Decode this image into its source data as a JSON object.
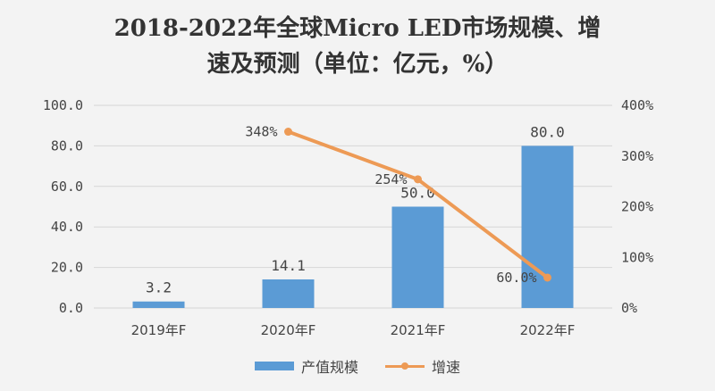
{
  "chart_data": {
    "type": "bar+line",
    "title_line1": "2018-2022年全球Micro LED市场规模、增",
    "title_line2": "速及预测（单位：亿元，%）",
    "categories": [
      "2019年F",
      "2020年F",
      "2021年F",
      "2022年F"
    ],
    "series": [
      {
        "name": "产值规模",
        "type": "bar",
        "axis": "left",
        "values": [
          3.2,
          14.1,
          50.0,
          80.0
        ],
        "labels": [
          "3.2",
          "14.1",
          "50.0",
          "80.0"
        ],
        "color": "#5b9bd5"
      },
      {
        "name": "增速",
        "type": "line",
        "axis": "right",
        "values": [
          null,
          348,
          254,
          60
        ],
        "labels": [
          "",
          "348%",
          "254%",
          "60.0%"
        ],
        "color": "#ed9a55"
      }
    ],
    "y_left": {
      "range": [
        0,
        100
      ],
      "ticks": [
        "0.0",
        "20.0",
        "40.0",
        "60.0",
        "80.0",
        "100.0"
      ]
    },
    "y_right": {
      "range": [
        0,
        400
      ],
      "ticks": [
        "0%",
        "100%",
        "200%",
        "300%",
        "400%"
      ]
    },
    "grid": true,
    "legend": "bottom"
  }
}
